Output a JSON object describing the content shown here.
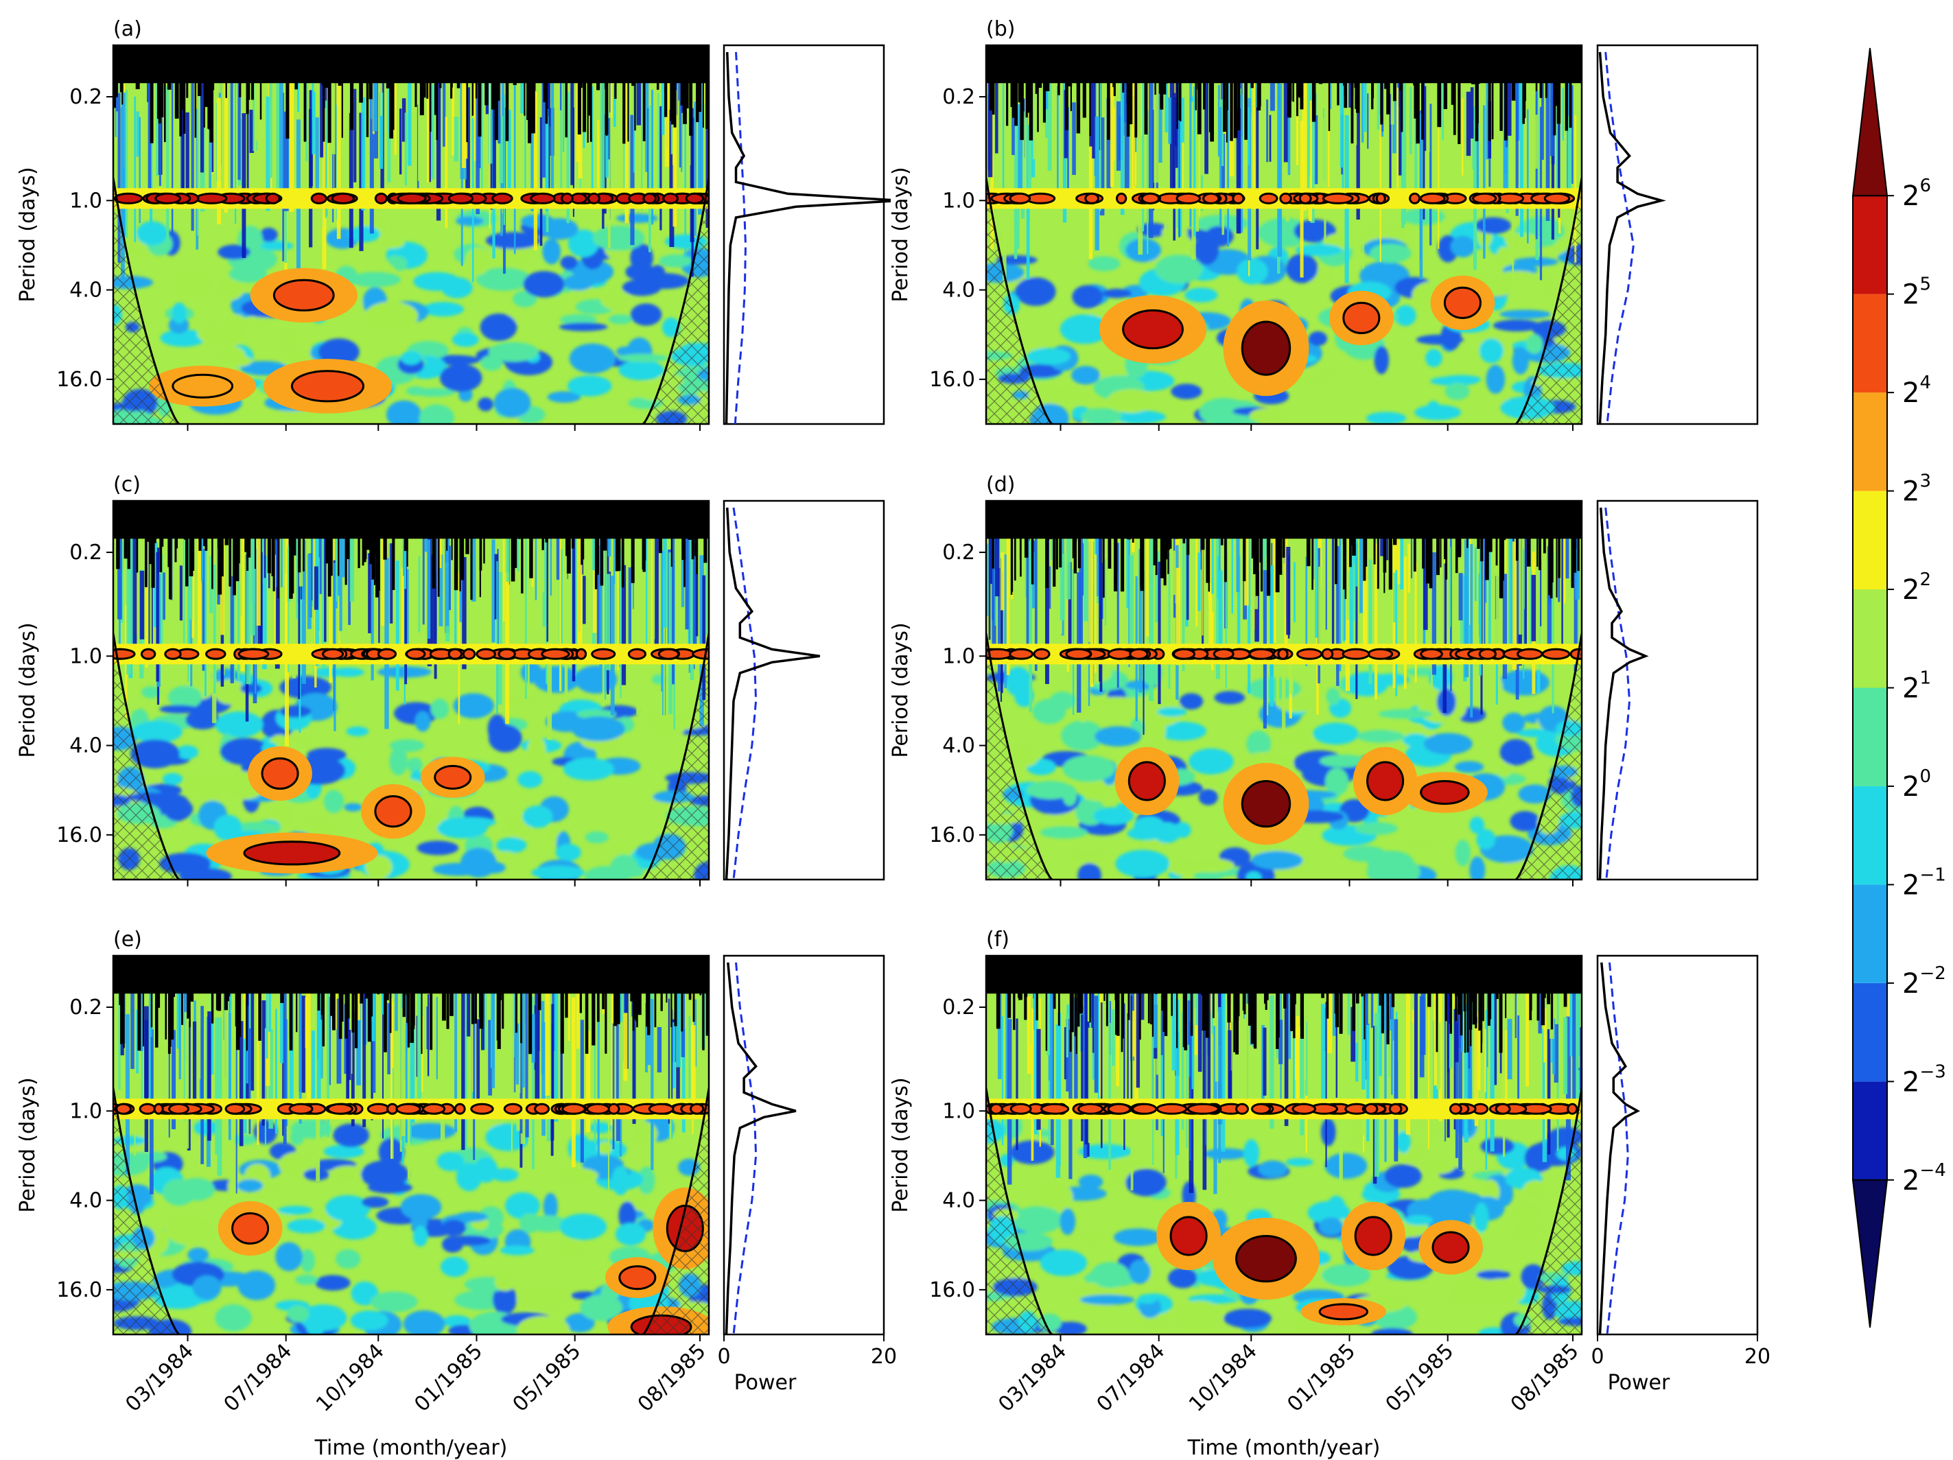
{
  "figure": {
    "y_axis_label": "Period (days)",
    "x_axis_label": "Time (month/year)",
    "power_label": "Power",
    "time_ticks": [
      "03/1984",
      "07/1984",
      "10/1984",
      "01/1985",
      "05/1985",
      "08/1985"
    ],
    "period_ticks": [
      "0.2",
      "1.0",
      "4.0",
      "16.0"
    ],
    "power_ticks": [
      "0",
      "20"
    ]
  },
  "colorbar": {
    "levels": [
      {
        "base": "2",
        "exp": "6"
      },
      {
        "base": "2",
        "exp": "5"
      },
      {
        "base": "2",
        "exp": "4"
      },
      {
        "base": "2",
        "exp": "3"
      },
      {
        "base": "2",
        "exp": "2"
      },
      {
        "base": "2",
        "exp": "1"
      },
      {
        "base": "2",
        "exp": "0"
      },
      {
        "base": "2",
        "exp": "−1"
      },
      {
        "base": "2",
        "exp": "−2"
      },
      {
        "base": "2",
        "exp": "−3"
      },
      {
        "base": "2",
        "exp": "−4"
      }
    ],
    "colors": [
      "#08085c",
      "#0a1cb4",
      "#1a5fe6",
      "#23a8ee",
      "#22d8e6",
      "#52e6a0",
      "#a6ec4a",
      "#f6f01a",
      "#f9a41c",
      "#f24e14",
      "#c8140c",
      "#7a0808"
    ]
  },
  "chart_data": [
    {
      "type": "heatmap",
      "panel": "(a)",
      "period_ylim": [
        0.09,
        32
      ],
      "power_xlim": [
        0,
        20
      ],
      "global_power": {
        "period": [
          0.1,
          0.2,
          0.35,
          0.5,
          0.6,
          0.75,
          0.9,
          1.0,
          1.1,
          1.3,
          2.0,
          4.0,
          8.0,
          16.0,
          32.0
        ],
        "power": [
          0.4,
          0.6,
          1.0,
          2.5,
          1.5,
          1.5,
          8.0,
          22.0,
          9.0,
          1.5,
          0.8,
          0.6,
          0.5,
          0.4,
          0.3
        ]
      },
      "significance": {
        "period": [
          0.1,
          0.2,
          0.5,
          1.0,
          2.0,
          4.0,
          8.0,
          16.0,
          32.0
        ],
        "power": [
          1.5,
          1.8,
          2.2,
          2.5,
          2.7,
          2.6,
          2.3,
          1.8,
          1.4
        ]
      }
    },
    {
      "type": "heatmap",
      "panel": "(b)",
      "period_ylim": [
        0.09,
        32
      ],
      "power_xlim": [
        0,
        20
      ],
      "global_power": {
        "period": [
          0.1,
          0.2,
          0.35,
          0.5,
          0.6,
          0.75,
          0.9,
          1.0,
          1.1,
          1.3,
          2.0,
          4.0,
          8.0,
          16.0,
          32.0
        ],
        "power": [
          0.3,
          0.7,
          1.6,
          4.0,
          2.5,
          2.5,
          5.0,
          8.0,
          5.0,
          2.5,
          1.5,
          1.2,
          1.0,
          0.6,
          0.3
        ]
      },
      "significance": {
        "period": [
          0.1,
          0.2,
          0.5,
          1.0,
          2.0,
          4.0,
          8.0,
          16.0,
          32.0
        ],
        "power": [
          1.0,
          1.5,
          2.5,
          3.5,
          4.5,
          3.8,
          2.6,
          1.8,
          1.2
        ]
      }
    },
    {
      "type": "heatmap",
      "panel": "(c)",
      "period_ylim": [
        0.09,
        32
      ],
      "power_xlim": [
        0,
        20
      ],
      "global_power": {
        "period": [
          0.1,
          0.2,
          0.35,
          0.5,
          0.6,
          0.75,
          0.9,
          1.0,
          1.1,
          1.3,
          2.0,
          4.0,
          8.0,
          16.0,
          32.0
        ],
        "power": [
          0.4,
          0.7,
          1.5,
          3.5,
          2.0,
          2.0,
          6.0,
          12.0,
          6.0,
          2.0,
          1.2,
          1.0,
          0.8,
          0.6,
          0.3
        ]
      },
      "significance": {
        "period": [
          0.1,
          0.2,
          0.5,
          1.0,
          2.0,
          4.0,
          8.0,
          16.0,
          32.0
        ],
        "power": [
          1.2,
          2.0,
          3.0,
          3.8,
          4.0,
          3.5,
          2.6,
          1.8,
          1.2
        ]
      }
    },
    {
      "type": "heatmap",
      "panel": "(d)",
      "period_ylim": [
        0.09,
        32
      ],
      "power_xlim": [
        0,
        20
      ],
      "global_power": {
        "period": [
          0.1,
          0.2,
          0.35,
          0.5,
          0.6,
          0.75,
          0.9,
          1.0,
          1.1,
          1.3,
          2.0,
          4.0,
          8.0,
          16.0,
          32.0
        ],
        "power": [
          0.4,
          0.8,
          1.5,
          3.0,
          1.8,
          1.8,
          4.0,
          6.0,
          4.0,
          2.0,
          1.5,
          1.0,
          0.8,
          0.5,
          0.3
        ]
      },
      "significance": {
        "period": [
          0.1,
          0.2,
          0.5,
          1.0,
          2.0,
          4.0,
          8.0,
          16.0,
          32.0
        ],
        "power": [
          1.0,
          1.6,
          2.6,
          3.6,
          4.0,
          3.5,
          2.5,
          1.7,
          1.1
        ]
      }
    },
    {
      "type": "heatmap",
      "panel": "(e)",
      "period_ylim": [
        0.09,
        32
      ],
      "power_xlim": [
        0,
        20
      ],
      "global_power": {
        "period": [
          0.1,
          0.2,
          0.35,
          0.5,
          0.6,
          0.75,
          0.9,
          1.0,
          1.1,
          1.3,
          2.0,
          4.0,
          8.0,
          16.0,
          32.0
        ],
        "power": [
          0.5,
          1.0,
          1.8,
          4.0,
          2.5,
          2.5,
          6.0,
          9.0,
          5.0,
          2.0,
          1.3,
          1.0,
          0.8,
          0.5,
          0.3
        ]
      },
      "significance": {
        "period": [
          0.1,
          0.2,
          0.5,
          1.0,
          2.0,
          4.0,
          8.0,
          16.0,
          32.0
        ],
        "power": [
          1.5,
          2.0,
          3.0,
          3.8,
          4.0,
          3.5,
          2.6,
          1.8,
          1.2
        ]
      }
    },
    {
      "type": "heatmap",
      "panel": "(f)",
      "period_ylim": [
        0.09,
        32
      ],
      "power_xlim": [
        0,
        20
      ],
      "global_power": {
        "period": [
          0.1,
          0.2,
          0.35,
          0.5,
          0.6,
          0.75,
          0.9,
          1.0,
          1.1,
          1.3,
          2.0,
          4.0,
          8.0,
          16.0,
          32.0
        ],
        "power": [
          0.5,
          1.0,
          1.8,
          3.5,
          2.0,
          2.0,
          3.5,
          5.0,
          3.5,
          2.0,
          1.6,
          1.2,
          0.9,
          0.6,
          0.3
        ]
      },
      "significance": {
        "period": [
          0.1,
          0.2,
          0.5,
          1.0,
          2.0,
          4.0,
          8.0,
          16.0,
          32.0
        ],
        "power": [
          1.5,
          2.0,
          2.8,
          3.5,
          3.8,
          3.4,
          2.5,
          1.8,
          1.2
        ]
      }
    }
  ]
}
